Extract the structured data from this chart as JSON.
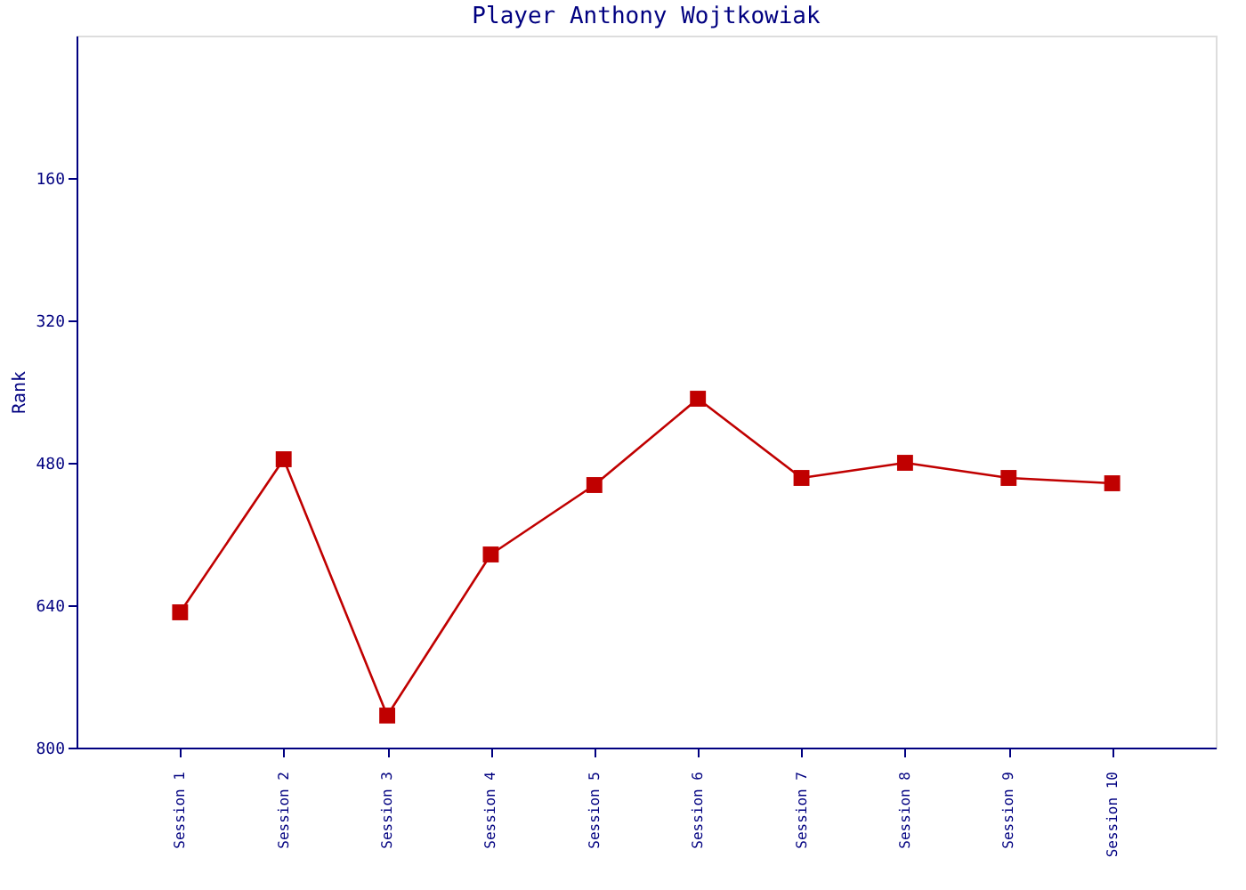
{
  "chart_data": {
    "type": "line",
    "title": "Player Anthony Wojtkowiak",
    "ylabel": "Rank",
    "categories": [
      "Session 1",
      "Session 2",
      "Session 3",
      "Session 4",
      "Session 5",
      "Session 6",
      "Session 7",
      "Session 8",
      "Session 9",
      "Session 10"
    ],
    "series": [
      {
        "color": "#c00000",
        "values": [
          648,
          476,
          764,
          583,
          505,
          408,
          497,
          480,
          497,
          503
        ]
      }
    ],
    "ylim": [
      800,
      0
    ],
    "yticks": [
      160,
      320,
      480,
      640,
      800
    ],
    "grid": false,
    "marker": "square",
    "line_style": "solid"
  }
}
